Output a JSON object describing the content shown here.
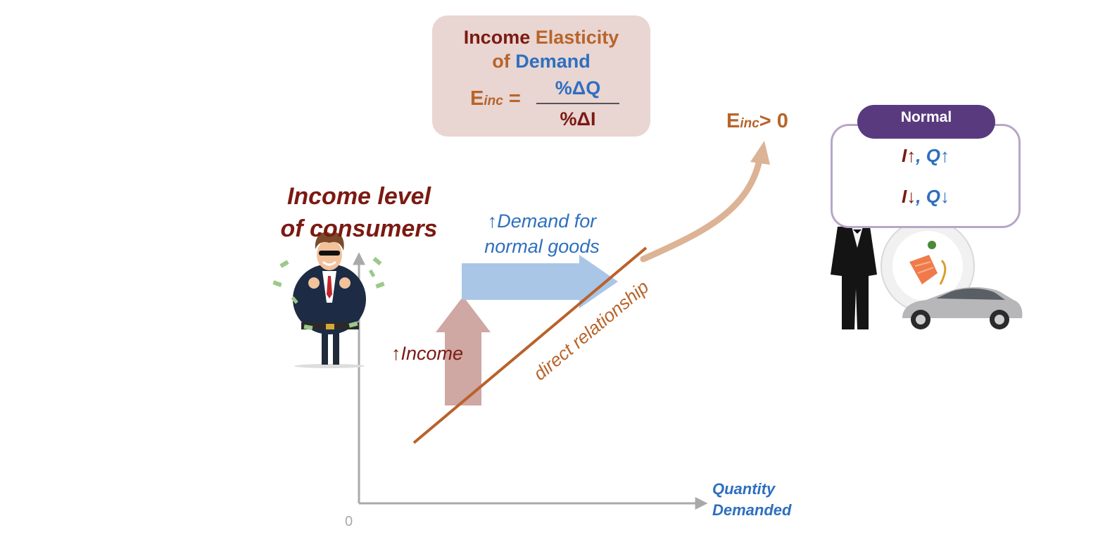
{
  "formula": {
    "title_income": "Income",
    "title_elasticity": "Elasticity",
    "title_of": "of",
    "title_demand": "Demand",
    "lhs_main": "E",
    "lhs_sub": "inc",
    "equals": "=",
    "numerator": "%ΔQ",
    "denominator": "%ΔI"
  },
  "income_title": {
    "line1": "Income level",
    "line2": "of consumers"
  },
  "labels": {
    "demand_arrow": "↑",
    "demand_line1": "Demand for",
    "demand_line2": "normal goods",
    "income_arrow": "↑",
    "income": "Income",
    "direct": "direct relationship",
    "elasticity_main": "E",
    "elasticity_sub": "inc",
    "elasticity_rest": "> 0"
  },
  "axes": {
    "origin": "0",
    "x_label_line1": "Quantity",
    "x_label_line2": "Demanded"
  },
  "normal": {
    "pill": "Normal",
    "rule1_i": "I↑",
    "rule1_sep": ",",
    "rule1_q": "Q↑",
    "rule2_i": "I↓",
    "rule2_sep": ",",
    "rule2_q": "Q↓"
  },
  "colors": {
    "dark_red": "#7b1a12",
    "orange": "#b8642a",
    "blue": "#2e6fbf",
    "purple": "#5a3a7e"
  },
  "icons": [
    "businessman-money-icon",
    "tuxedo-icon",
    "salmon-dish-icon",
    "car-icon"
  ]
}
